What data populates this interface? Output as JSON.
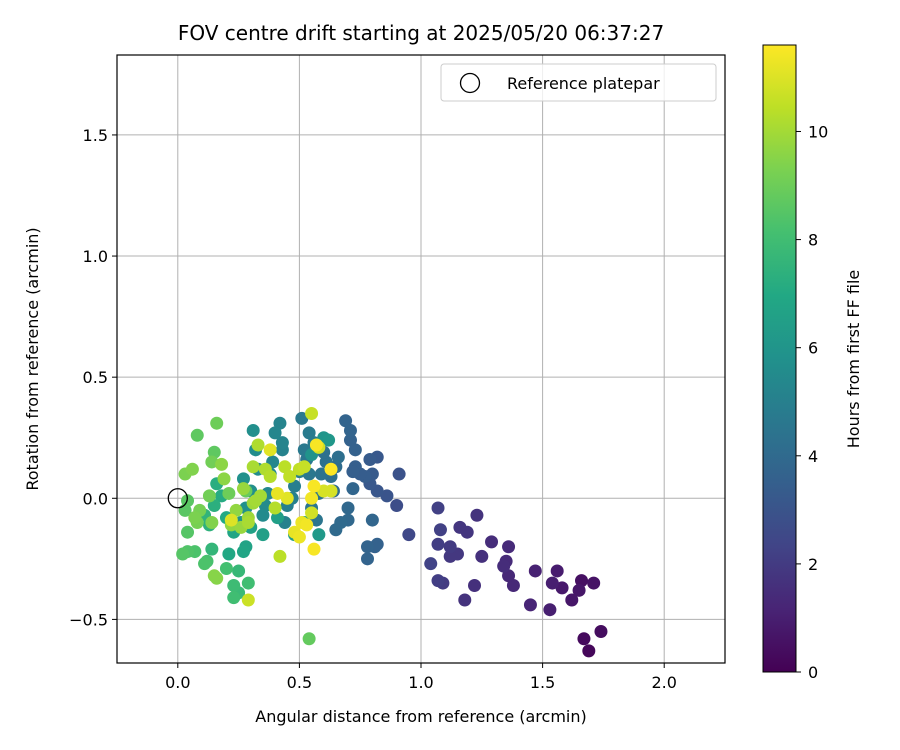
{
  "chart_data": {
    "type": "scatter",
    "title": "FOV centre drift starting at 2025/05/20 06:37:27",
    "xlabel": "Angular distance from reference (arcmin)",
    "ylabel": "Rotation from reference (arcmin)",
    "xlim": [
      -0.25,
      2.25
    ],
    "ylim": [
      -0.68,
      1.83
    ],
    "xticks": [
      0.0,
      0.5,
      1.0,
      1.5,
      2.0
    ],
    "xtick_labels": [
      "0.0",
      "0.5",
      "1.0",
      "1.5",
      "2.0"
    ],
    "yticks": [
      -0.5,
      0.0,
      0.5,
      1.0,
      1.5
    ],
    "ytick_labels": [
      "−0.5",
      "0.0",
      "0.5",
      "1.0",
      "1.5"
    ],
    "grid": true,
    "legend": {
      "position": "top-right",
      "entries": [
        {
          "label": "Reference platepar",
          "marker": "open-circle"
        }
      ]
    },
    "reference_point": {
      "x": 0.0,
      "y": 0.0
    },
    "colorbar": {
      "label": "Hours from first FF file",
      "colormap": "viridis",
      "range": [
        0,
        11.6
      ],
      "ticks": [
        0,
        2,
        4,
        6,
        8,
        10
      ],
      "tick_labels": [
        "0",
        "2",
        "4",
        "6",
        "8",
        "10"
      ]
    },
    "points": [
      {
        "x": 1.69,
        "y": -0.63,
        "c": 0.2
      },
      {
        "x": 1.74,
        "y": -0.55,
        "c": 0.4
      },
      {
        "x": 1.67,
        "y": -0.58,
        "c": 0.3
      },
      {
        "x": 1.66,
        "y": -0.34,
        "c": 0.5
      },
      {
        "x": 1.71,
        "y": -0.35,
        "c": 0.6
      },
      {
        "x": 1.65,
        "y": -0.38,
        "c": 0.7
      },
      {
        "x": 1.62,
        "y": -0.42,
        "c": 0.7
      },
      {
        "x": 1.58,
        "y": -0.37,
        "c": 0.8
      },
      {
        "x": 1.56,
        "y": -0.3,
        "c": 0.9
      },
      {
        "x": 1.53,
        "y": -0.46,
        "c": 1.0
      },
      {
        "x": 1.54,
        "y": -0.35,
        "c": 1.0
      },
      {
        "x": 1.47,
        "y": -0.3,
        "c": 1.1
      },
      {
        "x": 1.45,
        "y": -0.44,
        "c": 1.2
      },
      {
        "x": 1.38,
        "y": -0.36,
        "c": 1.3
      },
      {
        "x": 1.36,
        "y": -0.32,
        "c": 1.3
      },
      {
        "x": 1.36,
        "y": -0.2,
        "c": 1.4
      },
      {
        "x": 1.35,
        "y": -0.26,
        "c": 1.4
      },
      {
        "x": 1.34,
        "y": -0.28,
        "c": 1.5
      },
      {
        "x": 1.29,
        "y": -0.18,
        "c": 1.5
      },
      {
        "x": 1.25,
        "y": -0.24,
        "c": 1.6
      },
      {
        "x": 1.22,
        "y": -0.36,
        "c": 1.6
      },
      {
        "x": 1.23,
        "y": -0.07,
        "c": 1.7
      },
      {
        "x": 1.18,
        "y": -0.42,
        "c": 1.7
      },
      {
        "x": 1.19,
        "y": -0.14,
        "c": 1.8
      },
      {
        "x": 1.16,
        "y": -0.12,
        "c": 1.8
      },
      {
        "x": 1.15,
        "y": -0.23,
        "c": 1.9
      },
      {
        "x": 1.12,
        "y": -0.24,
        "c": 1.9
      },
      {
        "x": 1.12,
        "y": -0.2,
        "c": 2.0
      },
      {
        "x": 1.09,
        "y": -0.35,
        "c": 2.0
      },
      {
        "x": 1.07,
        "y": -0.34,
        "c": 2.1
      },
      {
        "x": 1.07,
        "y": -0.19,
        "c": 2.1
      },
      {
        "x": 1.08,
        "y": -0.13,
        "c": 2.2
      },
      {
        "x": 1.07,
        "y": -0.04,
        "c": 2.2
      },
      {
        "x": 1.04,
        "y": -0.27,
        "c": 2.3
      },
      {
        "x": 0.95,
        "y": -0.15,
        "c": 2.5
      },
      {
        "x": 0.9,
        "y": -0.03,
        "c": 2.7
      },
      {
        "x": 0.91,
        "y": 0.1,
        "c": 2.9
      },
      {
        "x": 0.86,
        "y": 0.01,
        "c": 3.0
      },
      {
        "x": 0.82,
        "y": 0.03,
        "c": 3.1
      },
      {
        "x": 0.79,
        "y": 0.06,
        "c": 3.2
      },
      {
        "x": 0.82,
        "y": 0.17,
        "c": 3.2
      },
      {
        "x": 0.79,
        "y": 0.16,
        "c": 3.3
      },
      {
        "x": 0.8,
        "y": 0.1,
        "c": 3.3
      },
      {
        "x": 0.77,
        "y": 0.09,
        "c": 3.4
      },
      {
        "x": 0.75,
        "y": 0.1,
        "c": 3.4
      },
      {
        "x": 0.73,
        "y": 0.13,
        "c": 3.5
      },
      {
        "x": 0.72,
        "y": 0.11,
        "c": 3.5
      },
      {
        "x": 0.73,
        "y": 0.2,
        "c": 3.6
      },
      {
        "x": 0.71,
        "y": 0.24,
        "c": 3.6
      },
      {
        "x": 0.71,
        "y": 0.28,
        "c": 3.7
      },
      {
        "x": 0.69,
        "y": 0.32,
        "c": 3.7
      },
      {
        "x": 0.82,
        "y": -0.19,
        "c": 3.6
      },
      {
        "x": 0.81,
        "y": -0.2,
        "c": 3.6
      },
      {
        "x": 0.78,
        "y": -0.2,
        "c": 3.7
      },
      {
        "x": 0.78,
        "y": -0.25,
        "c": 3.7
      },
      {
        "x": 0.8,
        "y": -0.09,
        "c": 3.8
      },
      {
        "x": 0.72,
        "y": 0.04,
        "c": 3.8
      },
      {
        "x": 0.7,
        "y": -0.04,
        "c": 3.9
      },
      {
        "x": 0.7,
        "y": -0.09,
        "c": 3.9
      },
      {
        "x": 0.67,
        "y": -0.1,
        "c": 4.0
      },
      {
        "x": 0.65,
        "y": -0.13,
        "c": 4.0
      },
      {
        "x": 0.64,
        "y": 0.03,
        "c": 4.1
      },
      {
        "x": 0.65,
        "y": 0.13,
        "c": 4.1
      },
      {
        "x": 0.66,
        "y": 0.17,
        "c": 4.2
      },
      {
        "x": 0.63,
        "y": 0.09,
        "c": 4.2
      },
      {
        "x": 0.61,
        "y": 0.15,
        "c": 4.3
      },
      {
        "x": 0.6,
        "y": 0.19,
        "c": 4.3
      },
      {
        "x": 0.59,
        "y": 0.1,
        "c": 4.4
      },
      {
        "x": 0.58,
        "y": 0.02,
        "c": 4.4
      },
      {
        "x": 0.57,
        "y": -0.09,
        "c": 4.5
      },
      {
        "x": 0.55,
        "y": -0.04,
        "c": 4.5
      },
      {
        "x": 0.54,
        "y": 0.1,
        "c": 4.6
      },
      {
        "x": 0.53,
        "y": 0.16,
        "c": 4.6
      },
      {
        "x": 0.52,
        "y": 0.2,
        "c": 4.7
      },
      {
        "x": 0.51,
        "y": 0.33,
        "c": 4.7
      },
      {
        "x": 0.54,
        "y": 0.27,
        "c": 4.8
      },
      {
        "x": 0.56,
        "y": 0.23,
        "c": 4.8
      },
      {
        "x": 0.5,
        "y": 0.11,
        "c": 4.9
      },
      {
        "x": 0.48,
        "y": 0.05,
        "c": 4.9
      },
      {
        "x": 0.47,
        "y": 0.0,
        "c": 5.0
      },
      {
        "x": 0.45,
        "y": -0.03,
        "c": 5.0
      },
      {
        "x": 0.44,
        "y": -0.1,
        "c": 5.1
      },
      {
        "x": 0.43,
        "y": 0.2,
        "c": 5.1
      },
      {
        "x": 0.43,
        "y": 0.23,
        "c": 5.2
      },
      {
        "x": 0.42,
        "y": 0.31,
        "c": 5.2
      },
      {
        "x": 0.4,
        "y": 0.27,
        "c": 5.3
      },
      {
        "x": 0.39,
        "y": 0.15,
        "c": 5.3
      },
      {
        "x": 0.38,
        "y": 0.1,
        "c": 5.4
      },
      {
        "x": 0.37,
        "y": 0.02,
        "c": 5.4
      },
      {
        "x": 0.36,
        "y": -0.03,
        "c": 5.5
      },
      {
        "x": 0.35,
        "y": -0.07,
        "c": 5.5
      },
      {
        "x": 0.33,
        "y": 0.12,
        "c": 5.6
      },
      {
        "x": 0.32,
        "y": 0.2,
        "c": 5.6
      },
      {
        "x": 0.31,
        "y": 0.28,
        "c": 5.7
      },
      {
        "x": 0.3,
        "y": 0.03,
        "c": 5.7
      },
      {
        "x": 0.28,
        "y": -0.04,
        "c": 5.8
      },
      {
        "x": 0.27,
        "y": 0.08,
        "c": 5.8
      },
      {
        "x": 0.26,
        "y": -0.1,
        "c": 5.9
      },
      {
        "x": 0.55,
        "y": 0.18,
        "c": 5.9
      },
      {
        "x": 0.6,
        "y": 0.25,
        "c": 6.0
      },
      {
        "x": 0.62,
        "y": 0.24,
        "c": 6.1
      },
      {
        "x": 0.58,
        "y": -0.15,
        "c": 6.2
      },
      {
        "x": 0.52,
        "y": -0.1,
        "c": 6.3
      },
      {
        "x": 0.48,
        "y": -0.15,
        "c": 6.4
      },
      {
        "x": 0.41,
        "y": -0.08,
        "c": 6.5
      },
      {
        "x": 0.35,
        "y": -0.15,
        "c": 6.5
      },
      {
        "x": 0.3,
        "y": -0.12,
        "c": 6.6
      },
      {
        "x": 0.28,
        "y": -0.2,
        "c": 6.7
      },
      {
        "x": 0.27,
        "y": -0.22,
        "c": 6.8
      },
      {
        "x": 0.23,
        "y": -0.14,
        "c": 6.8
      },
      {
        "x": 0.21,
        "y": -0.23,
        "c": 6.9
      },
      {
        "x": 0.2,
        "y": -0.08,
        "c": 7.0
      },
      {
        "x": 0.18,
        "y": 0.01,
        "c": 7.1
      },
      {
        "x": 0.16,
        "y": 0.06,
        "c": 7.2
      },
      {
        "x": 0.15,
        "y": -0.03,
        "c": 7.3
      },
      {
        "x": 0.13,
        "y": -0.11,
        "c": 7.4
      },
      {
        "x": 0.11,
        "y": -0.07,
        "c": 7.5
      },
      {
        "x": 0.14,
        "y": -0.21,
        "c": 7.6
      },
      {
        "x": 0.25,
        "y": -0.3,
        "c": 7.7
      },
      {
        "x": 0.25,
        "y": -0.39,
        "c": 7.8
      },
      {
        "x": 0.23,
        "y": -0.36,
        "c": 7.9
      },
      {
        "x": 0.23,
        "y": -0.41,
        "c": 8.0
      },
      {
        "x": 0.29,
        "y": -0.35,
        "c": 8.0
      },
      {
        "x": 0.2,
        "y": -0.29,
        "c": 8.1
      },
      {
        "x": 0.12,
        "y": -0.26,
        "c": 8.2
      },
      {
        "x": 0.11,
        "y": -0.27,
        "c": 8.3
      },
      {
        "x": 0.07,
        "y": -0.22,
        "c": 8.3
      },
      {
        "x": 0.04,
        "y": -0.22,
        "c": 8.4
      },
      {
        "x": 0.02,
        "y": -0.23,
        "c": 8.5
      },
      {
        "x": 0.04,
        "y": -0.14,
        "c": 8.5
      },
      {
        "x": 0.03,
        "y": -0.05,
        "c": 8.6
      },
      {
        "x": 0.04,
        "y": -0.01,
        "c": 8.6
      },
      {
        "x": 0.08,
        "y": 0.26,
        "c": 8.7
      },
      {
        "x": 0.15,
        "y": 0.19,
        "c": 8.7
      },
      {
        "x": 0.54,
        "y": -0.58,
        "c": 8.8
      },
      {
        "x": 0.28,
        "y": 0.03,
        "c": 8.9
      },
      {
        "x": 0.21,
        "y": 0.02,
        "c": 9.0
      },
      {
        "x": 0.16,
        "y": 0.31,
        "c": 9.0
      },
      {
        "x": 0.14,
        "y": 0.15,
        "c": 9.1
      },
      {
        "x": 0.13,
        "y": 0.01,
        "c": 9.1
      },
      {
        "x": 0.09,
        "y": -0.05,
        "c": 9.2
      },
      {
        "x": 0.08,
        "y": -0.1,
        "c": 9.2
      },
      {
        "x": 0.07,
        "y": -0.08,
        "c": 9.3
      },
      {
        "x": 0.03,
        "y": 0.1,
        "c": 9.3
      },
      {
        "x": 0.06,
        "y": 0.12,
        "c": 9.4
      },
      {
        "x": 0.14,
        "y": -0.1,
        "c": 9.4
      },
      {
        "x": 0.15,
        "y": -0.32,
        "c": 9.5
      },
      {
        "x": 0.16,
        "y": -0.33,
        "c": 9.5
      },
      {
        "x": 0.18,
        "y": 0.14,
        "c": 9.6
      },
      {
        "x": 0.19,
        "y": 0.08,
        "c": 9.6
      },
      {
        "x": 0.22,
        "y": -0.11,
        "c": 9.7
      },
      {
        "x": 0.24,
        "y": -0.05,
        "c": 9.7
      },
      {
        "x": 0.26,
        "y": -0.12,
        "c": 9.8
      },
      {
        "x": 0.27,
        "y": 0.04,
        "c": 9.8
      },
      {
        "x": 0.29,
        "y": -0.08,
        "c": 9.9
      },
      {
        "x": 0.31,
        "y": -0.02,
        "c": 9.9
      },
      {
        "x": 0.32,
        "y": -0.01,
        "c": 10.0
      },
      {
        "x": 0.34,
        "y": 0.01,
        "c": 10.0
      },
      {
        "x": 0.29,
        "y": -0.1,
        "c": 10.1
      },
      {
        "x": 0.31,
        "y": 0.13,
        "c": 10.1
      },
      {
        "x": 0.33,
        "y": 0.22,
        "c": 10.2
      },
      {
        "x": 0.36,
        "y": 0.12,
        "c": 10.2
      },
      {
        "x": 0.38,
        "y": 0.09,
        "c": 10.3
      },
      {
        "x": 0.4,
        "y": -0.04,
        "c": 10.3
      },
      {
        "x": 0.42,
        "y": -0.24,
        "c": 10.4
      },
      {
        "x": 0.44,
        "y": 0.13,
        "c": 10.4
      },
      {
        "x": 0.46,
        "y": 0.09,
        "c": 10.5
      },
      {
        "x": 0.5,
        "y": 0.12,
        "c": 10.5
      },
      {
        "x": 0.52,
        "y": 0.13,
        "c": 10.6
      },
      {
        "x": 0.55,
        "y": 0.35,
        "c": 10.6
      },
      {
        "x": 0.29,
        "y": -0.42,
        "c": 10.7
      },
      {
        "x": 0.55,
        "y": -0.06,
        "c": 10.8
      },
      {
        "x": 0.58,
        "y": 0.21,
        "c": 10.8
      },
      {
        "x": 0.6,
        "y": 0.03,
        "c": 10.9
      },
      {
        "x": 0.63,
        "y": 0.03,
        "c": 10.9
      },
      {
        "x": 0.22,
        "y": -0.09,
        "c": 11.0
      },
      {
        "x": 0.38,
        "y": 0.2,
        "c": 11.1
      },
      {
        "x": 0.45,
        "y": 0.0,
        "c": 11.1
      },
      {
        "x": 0.41,
        "y": 0.02,
        "c": 11.2
      },
      {
        "x": 0.48,
        "y": -0.14,
        "c": 11.2
      },
      {
        "x": 0.5,
        "y": -0.16,
        "c": 11.3
      },
      {
        "x": 0.51,
        "y": -0.1,
        "c": 11.3
      },
      {
        "x": 0.53,
        "y": -0.11,
        "c": 11.4
      },
      {
        "x": 0.55,
        "y": 0.0,
        "c": 11.4
      },
      {
        "x": 0.56,
        "y": 0.05,
        "c": 11.5
      },
      {
        "x": 0.56,
        "y": -0.21,
        "c": 11.5
      },
      {
        "x": 0.57,
        "y": 0.22,
        "c": 11.5
      },
      {
        "x": 0.63,
        "y": 0.12,
        "c": 11.6
      }
    ]
  }
}
